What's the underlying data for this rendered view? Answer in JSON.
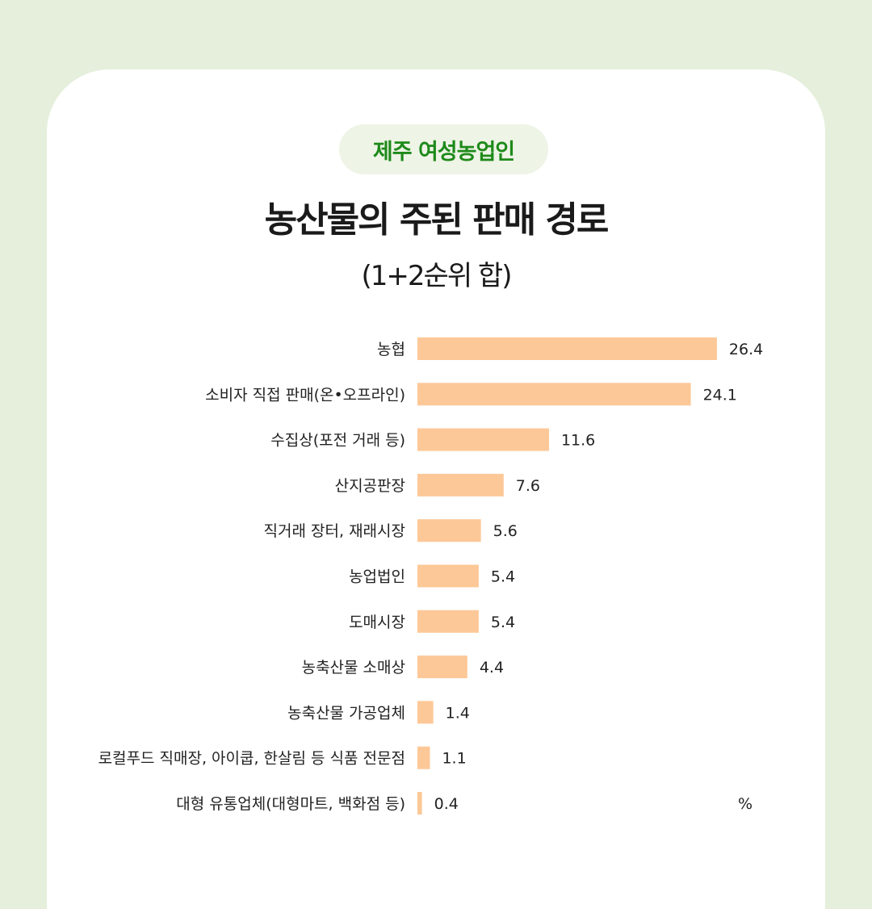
{
  "header": {
    "badge": "제주 여성농업인",
    "title": "농산물의 주된 판매 경로",
    "subtitle": "(1+2순위 합)"
  },
  "colors": {
    "background": "#e5efdb",
    "card": "#ffffff",
    "badge_bg": "#eef4e6",
    "badge_text": "#1e8a1a",
    "bar": "#fdc897"
  },
  "chart_data": {
    "type": "bar",
    "orientation": "horizontal",
    "unit": "%",
    "categories": [
      "농협",
      "소비자 직접 판매(온•오프라인)",
      "수집상(포전 거래 등)",
      "산지공판장",
      "직거래 장터, 재래시장",
      "농업법인",
      "도매시장",
      "농축산물 소매상",
      "농축산물 가공업체",
      "로컬푸드 직매장, 아이쿱, 한살림 등 식품 전문점",
      "대형 유통업체(대형마트, 백화점 등)"
    ],
    "values": [
      26.4,
      24.1,
      11.6,
      7.6,
      5.6,
      5.4,
      5.4,
      4.4,
      1.4,
      1.1,
      0.4
    ],
    "value_labels": [
      "26.4",
      "24.1",
      "11.6",
      "7.6",
      "5.6",
      "5.4",
      "5.4",
      "4.4",
      "1.4",
      "1.1",
      "0.4"
    ],
    "xlim": [
      0,
      30
    ],
    "grid": false,
    "legend": "none"
  }
}
